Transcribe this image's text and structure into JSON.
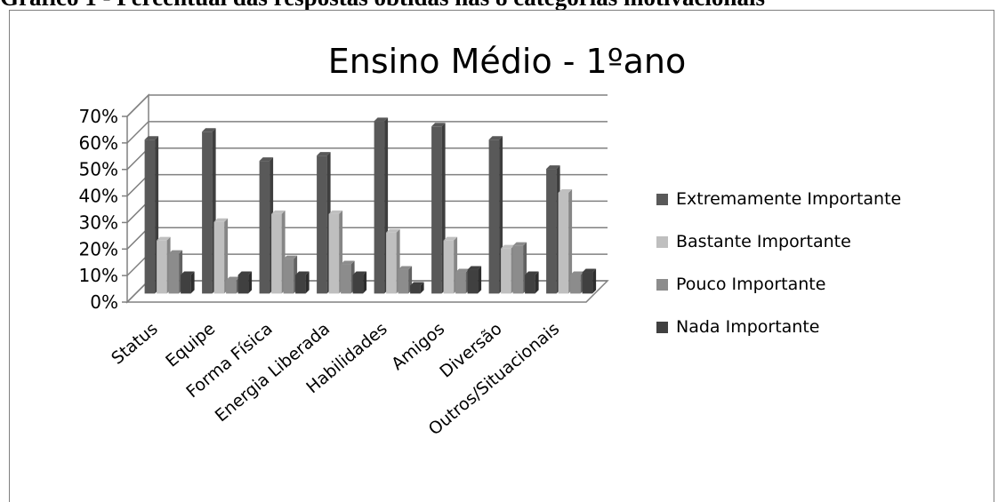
{
  "caption": "Gráfico 1 - Percentual das respostas obtidas nas 8 categorias motivacionais",
  "chart_data": {
    "type": "bar",
    "title": "Ensino Médio - 1ºano",
    "xlabel": "",
    "ylabel": "",
    "ylim": [
      0,
      70
    ],
    "y_ticks": [
      "0%",
      "10%",
      "20%",
      "30%",
      "40%",
      "50%",
      "60%",
      "70%"
    ],
    "grid": true,
    "legend_position": "right",
    "categories": [
      "Status",
      "Equipe",
      "Forma Física",
      "Energia Liberada",
      "Habilidades",
      "Amigos",
      "Diversão",
      "Outros/Situacionais"
    ],
    "series": [
      {
        "name": "Extremamente Importante",
        "color": "#595959",
        "values": [
          58,
          61,
          50,
          52,
          65,
          63,
          58,
          47
        ]
      },
      {
        "name": "Bastante Importante",
        "color": "#bfbfbf",
        "values": [
          20,
          27,
          30,
          30,
          23,
          20,
          17,
          38
        ]
      },
      {
        "name": "Pouco Importante",
        "color": "#8c8c8c",
        "values": [
          15,
          5,
          13,
          11,
          9,
          8,
          18,
          7
        ]
      },
      {
        "name": "Nada Importante",
        "color": "#404040",
        "values": [
          7,
          7,
          7,
          7,
          3,
          9,
          7,
          8
        ]
      }
    ]
  }
}
